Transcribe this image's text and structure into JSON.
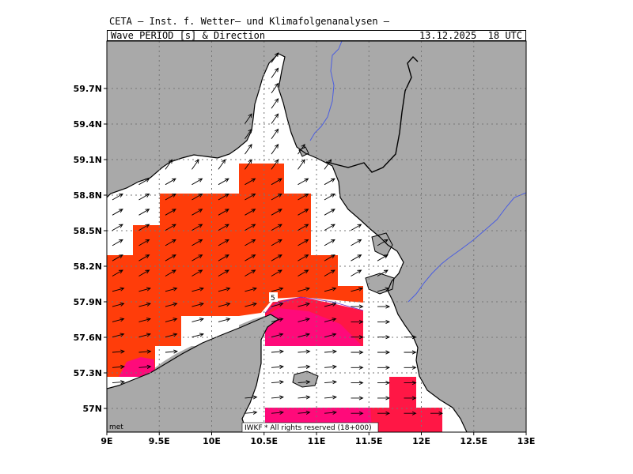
{
  "header": {
    "institute": "CETA – Inst. f. Wetter– und Klimafolgenanalysen –",
    "product": "Wave_PERIOD_[s]_&_Direction",
    "datetime": "13.12.2025  18 UTC"
  },
  "map": {
    "lon_range": [
      9.0,
      13.0
    ],
    "lat_range": [
      56.8,
      60.1
    ],
    "lon_ticks": [
      {
        "v": 9.0,
        "label": "9E"
      },
      {
        "v": 9.5,
        "label": "9.5E"
      },
      {
        "v": 10.0,
        "label": "10E"
      },
      {
        "v": 10.5,
        "label": "10.5E"
      },
      {
        "v": 11.0,
        "label": "11E"
      },
      {
        "v": 11.5,
        "label": "11.5E"
      },
      {
        "v": 12.0,
        "label": "12E"
      },
      {
        "v": 12.5,
        "label": "12.5E"
      },
      {
        "v": 13.0,
        "label": "13E"
      }
    ],
    "lat_ticks": [
      {
        "v": 57.0,
        "label": "57N"
      },
      {
        "v": 57.3,
        "label": "57.3N"
      },
      {
        "v": 57.6,
        "label": "57.6N"
      },
      {
        "v": 57.9,
        "label": "57.9N"
      },
      {
        "v": 58.2,
        "label": "58.2N"
      },
      {
        "v": 58.5,
        "label": "58.5N"
      },
      {
        "v": 58.8,
        "label": "58.8N"
      },
      {
        "v": 59.1,
        "label": "59.1N"
      },
      {
        "v": 59.4,
        "label": "59.4N"
      },
      {
        "v": 59.7,
        "label": "59.7N"
      }
    ],
    "contour_label": "5",
    "footer_left": "met",
    "footer_box_label": "IWKF",
    "footer_rights": "* All rights reserved (18+000)",
    "colors": {
      "land": "#a9a9a9",
      "sea": "#ffffff",
      "period_orange": "#ff3d0a",
      "period_red": "#ff1745",
      "period_magenta": "#ff0a7a",
      "rivers": "#4a5de0"
    }
  }
}
